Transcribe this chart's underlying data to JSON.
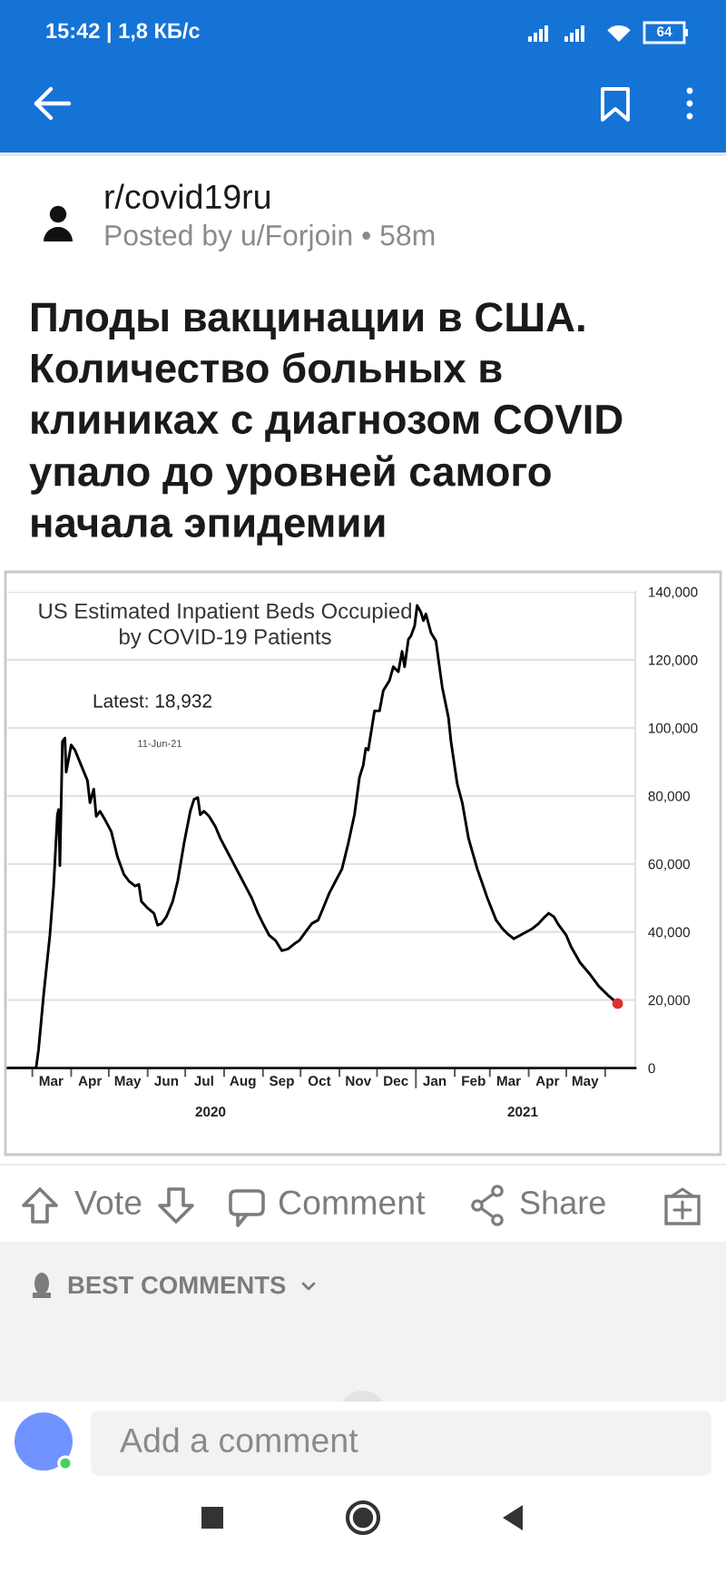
{
  "chart_data": {
    "type": "line",
    "title": "Плоды вакцинации в США.\nКоличество больных в\nклиниках с диагнозом COVID\nупало до уровней самого\nначала эпидемии",
    "subtitle": "US Estimated Inpatient Beds Occupied\nby COVID-19 Patients",
    "annotations": [
      "Latest: 18,932",
      "11-Jun-21",
      "2020",
      "2021",
      "15:42 | 1,8 КБ/с",
      "64",
      "r/covid19ru",
      "Posted by u/Forjoin • 58m",
      "Vote",
      "Comment",
      "Share",
      "BEST COMMENTS",
      "Add a comment"
    ],
    "series": [
      {
        "color": "#000000",
        "x": [
          "2020-02-10",
          "2020-03-04",
          "2020-03-06",
          "2020-03-10",
          "2020-03-15",
          "2020-03-18",
          "2020-03-21",
          "2020-03-22",
          "2020-03-23",
          "2020-03-25",
          "2020-03-27",
          "2020-03-28",
          "2020-04-01",
          "2020-04-04",
          "2020-04-09",
          "2020-04-14",
          "2020-04-16",
          "2020-04-19",
          "2020-04-21",
          "2020-04-24",
          "2020-04-28",
          "2020-05-03",
          "2020-05-08",
          "2020-05-13",
          "2020-05-17",
          "2020-05-22",
          "2020-05-25",
          "2020-05-27",
          "2020-06-01",
          "2020-06-06",
          "2020-06-09",
          "2020-06-12",
          "2020-06-16",
          "2020-06-21",
          "2020-06-25",
          "2020-06-30",
          "2020-07-05",
          "2020-07-08",
          "2020-07-11",
          "2020-07-13",
          "2020-07-16",
          "2020-07-20",
          "2020-07-25",
          "2020-07-29",
          "2020-08-03",
          "2020-08-08",
          "2020-08-13",
          "2020-08-18",
          "2020-08-23",
          "2020-08-28",
          "2020-09-01",
          "2020-09-06",
          "2020-09-11",
          "2020-09-16",
          "2020-09-21",
          "2020-09-26",
          "2020-09-30",
          "2020-10-05",
          "2020-10-10",
          "2020-10-15",
          "2020-10-19",
          "2020-10-24",
          "2020-10-29",
          "2020-11-03",
          "2020-11-08",
          "2020-11-13",
          "2020-11-17",
          "2020-11-20",
          "2020-11-22",
          "2020-11-24",
          "2020-11-29",
          "2020-12-03",
          "2020-12-06",
          "2020-12-11",
          "2020-12-14",
          "2020-12-18",
          "2020-12-21",
          "2020-12-23",
          "2020-12-26",
          "2020-12-28",
          "2020-12-31",
          "2021-01-02",
          "2021-01-05",
          "2021-01-07",
          "2021-01-09",
          "2021-01-13",
          "2021-01-17",
          "2021-01-22",
          "2021-01-27",
          "2021-01-29",
          "2021-02-03",
          "2021-02-07",
          "2021-02-12",
          "2021-02-19",
          "2021-02-27",
          "2021-03-06",
          "2021-03-11",
          "2021-03-15",
          "2021-03-20",
          "2021-03-25",
          "2021-03-30",
          "2021-04-04",
          "2021-04-09",
          "2021-04-14",
          "2021-04-17",
          "2021-04-21",
          "2021-04-25",
          "2021-05-01",
          "2021-05-05",
          "2021-05-12",
          "2021-05-20",
          "2021-05-27",
          "2021-06-03",
          "2021-06-11"
        ],
        "values": [
          0,
          0,
          5500,
          21500,
          39000,
          53500,
          74500,
          76000,
          59500,
          96000,
          97000,
          87000,
          95000,
          93500,
          89000,
          84500,
          78000,
          82000,
          74000,
          75500,
          73000,
          69500,
          62000,
          57000,
          55000,
          53500,
          54000,
          49000,
          47000,
          45500,
          42000,
          42500,
          44500,
          49000,
          55000,
          66000,
          75500,
          79000,
          79500,
          74500,
          75500,
          74000,
          71000,
          67500,
          64000,
          60500,
          57000,
          53500,
          50000,
          45500,
          42500,
          39000,
          37500,
          34500,
          35000,
          36500,
          37500,
          40000,
          42500,
          43500,
          47000,
          51500,
          55000,
          58500,
          66000,
          74500,
          85500,
          89000,
          94000,
          93500,
          105000,
          105000,
          111000,
          114000,
          118000,
          116500,
          122500,
          118000,
          126000,
          127000,
          130000,
          136000,
          134000,
          131500,
          133500,
          128000,
          125500,
          112000,
          103000,
          96000,
          83500,
          78000,
          67500,
          58500,
          50000,
          43500,
          41000,
          39500,
          38000,
          39000,
          40000,
          41000,
          42500,
          44500,
          45500,
          44500,
          42000,
          39000,
          35500,
          31000,
          27500,
          24000,
          21500,
          18932
        ]
      },
      {
        "type": "scatter",
        "color": "#e0302e",
        "marker": "circle",
        "x": [
          "2021-06-11"
        ],
        "values": [
          18932
        ]
      }
    ],
    "xlim": [
      "2020-02-10",
      "2021-06-25"
    ],
    "ylim": [
      0,
      140000
    ],
    "xticks": [
      {
        "value": "2020-03-01",
        "label": null
      },
      {
        "value": "2020-04-01",
        "label": null
      },
      {
        "value": "2020-05-01",
        "label": null
      },
      {
        "value": "2020-06-01",
        "label": null
      },
      {
        "value": "2020-07-01",
        "label": null
      },
      {
        "value": "2020-08-01",
        "label": null
      },
      {
        "value": "2020-09-01",
        "label": null
      },
      {
        "value": "2020-10-01",
        "label": null
      },
      {
        "value": "2020-11-01",
        "label": null
      },
      {
        "value": "2020-12-01",
        "label": null
      },
      {
        "value": "2021-01-01",
        "label": null
      },
      {
        "value": "2021-02-01",
        "label": null
      },
      {
        "value": "2021-03-01",
        "label": null
      },
      {
        "value": "2021-04-01",
        "label": null
      },
      {
        "value": "2021-05-01",
        "label": null
      },
      {
        "value": "2021-06-01",
        "label": null
      },
      {
        "value": "2020-03-16",
        "label": "Mar"
      },
      {
        "value": "2020-04-16",
        "label": "Apr"
      },
      {
        "value": "2020-05-16",
        "label": "May"
      },
      {
        "value": "2020-06-16",
        "label": "Jun"
      },
      {
        "value": "2020-07-16",
        "label": "Jul"
      },
      {
        "value": "2020-08-16",
        "label": "Aug"
      },
      {
        "value": "2020-09-16",
        "label": "Sep"
      },
      {
        "value": "2020-10-16",
        "label": "Oct"
      },
      {
        "value": "2020-11-16",
        "label": "Nov"
      },
      {
        "value": "2020-12-16",
        "label": "Dec"
      },
      {
        "value": "2021-01-16",
        "label": "Jan"
      },
      {
        "value": "2021-02-16",
        "label": "Feb"
      },
      {
        "value": "2021-03-16",
        "label": "Mar"
      },
      {
        "value": "2021-04-16",
        "label": "Apr"
      },
      {
        "value": "2021-05-16",
        "label": "May"
      }
    ],
    "yticks": [
      0,
      {
        "value": 20000,
        "label": "20,000"
      },
      {
        "value": 40000,
        "label": "40,000"
      },
      {
        "value": 60000,
        "label": "60,000"
      },
      {
        "value": 80000,
        "label": "80,000"
      },
      {
        "value": 100000,
        "label": "100,000"
      },
      {
        "value": 120000,
        "label": "120,000"
      },
      {
        "value": 140000,
        "label": "140,000"
      }
    ],
    "grid": "y"
  }
}
